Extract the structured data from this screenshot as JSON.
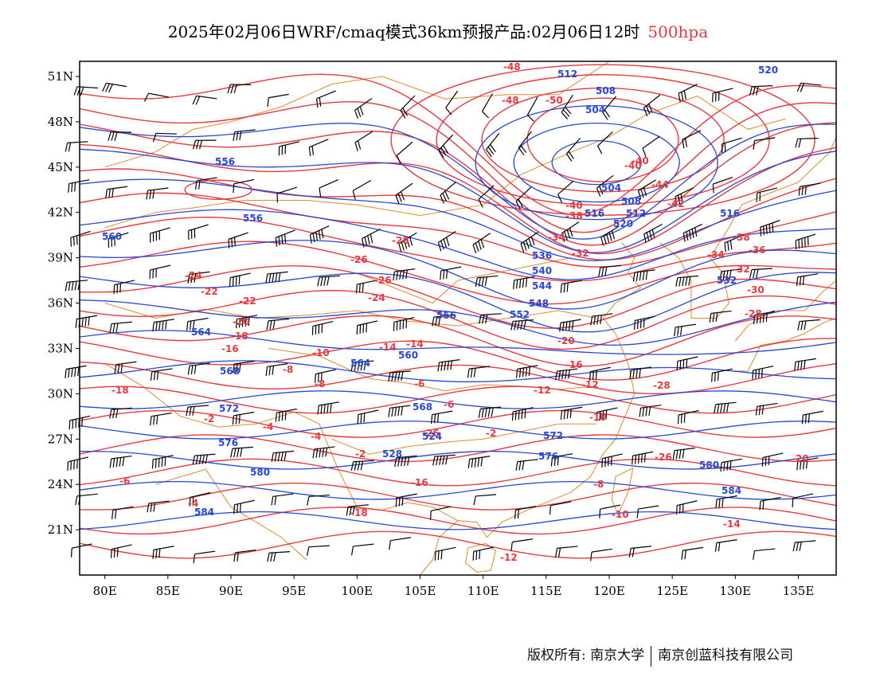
{
  "title": {
    "main": "2025年02月06日WRF/cmaq模式36km预报产品:02月06日12时",
    "level": "500hpa"
  },
  "colors": {
    "temperature": "#e8393e",
    "height": "#2747d8",
    "coastline": "#e08a2c",
    "wind": "#000000",
    "level_label": "#e8393e"
  },
  "map": {
    "lon_range": [
      78,
      138
    ],
    "lat_range": [
      18,
      52
    ],
    "x_ticks": [
      "80E",
      "85E",
      "90E",
      "95E",
      "100E",
      "105E",
      "110E",
      "115E",
      "120E",
      "125E",
      "130E",
      "135E"
    ],
    "y_ticks": [
      "51N",
      "48N",
      "45N",
      "42N",
      "39N",
      "36N",
      "33N",
      "30N",
      "27N",
      "24N",
      "21N"
    ]
  },
  "temperature_labels": [
    "-48",
    "-48",
    "-50",
    "-40",
    "-40",
    "-44",
    "-42",
    "-40",
    "-38",
    "-34",
    "-32",
    "-34",
    "-36",
    "-38",
    "-32",
    "-30",
    "-28",
    "-28",
    "-26",
    "-26",
    "-24",
    "-24",
    "-22",
    "-22",
    "-20",
    "-20",
    "-18",
    "-18",
    "-16",
    "-16",
    "-14",
    "-14",
    "-12",
    "-12",
    "-10",
    "-10",
    "-8",
    "-8",
    "-6",
    "-6",
    "-4",
    "-4",
    "-2",
    "-2",
    "-26",
    "-26",
    "-28",
    "-20",
    "-18",
    "-16",
    "-14",
    "-12",
    "-10",
    "-8",
    "-6",
    "-4",
    "-2"
  ],
  "height_labels": [
    "520",
    "512",
    "508",
    "504",
    "556",
    "556",
    "560",
    "564",
    "568",
    "572",
    "576",
    "580",
    "584",
    "504",
    "508",
    "512",
    "516",
    "516",
    "520",
    "524",
    "528",
    "532",
    "536",
    "540",
    "544",
    "548",
    "552",
    "556",
    "560",
    "564",
    "568",
    "572",
    "576",
    "580",
    "584"
  ],
  "footer": {
    "left": "版权所有: 南京大学",
    "right": "南京创蓝科技有限公司"
  }
}
